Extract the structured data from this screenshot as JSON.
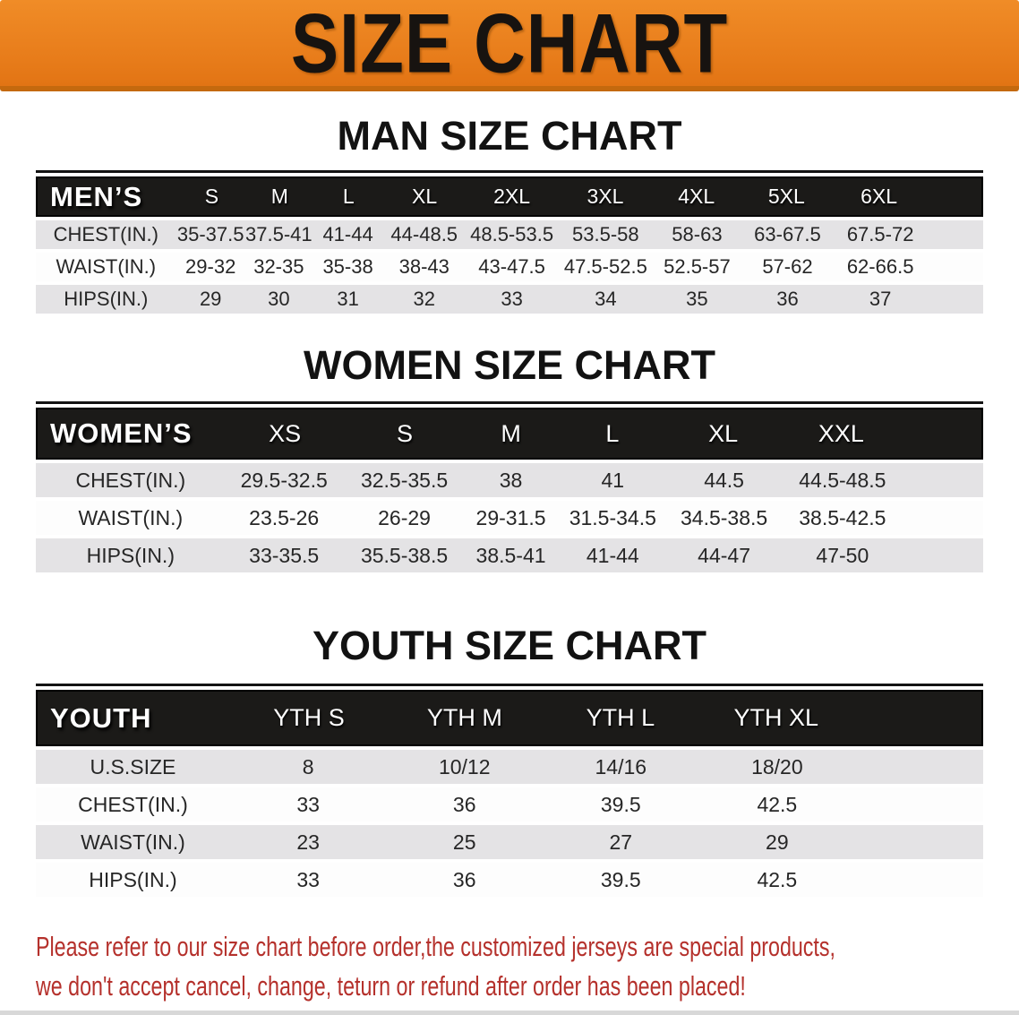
{
  "banner": {
    "title": "SIZE CHART",
    "bg_color": "#e87d1b",
    "edge_color": "#c4690e",
    "text_color": "#171310"
  },
  "sections": [
    {
      "heading": "MAN SIZE CHART",
      "table": {
        "header_label": "MEN’S",
        "columns": [
          "S",
          "M",
          "L",
          "XL",
          "2XL",
          "3XL",
          "4XL",
          "5XL",
          "6XL"
        ],
        "rows": [
          {
            "label": "CHEST(IN.)",
            "values": [
              "35-37.5",
              "37.5-41",
              "41-44",
              "44-48.5",
              "48.5-53.5",
              "53.5-58",
              "58-63",
              "63-67.5",
              "67.5-72"
            ]
          },
          {
            "label": "WAIST(IN.)",
            "values": [
              "29-32",
              "32-35",
              "35-38",
              "38-43",
              "43-47.5",
              "47.5-52.5",
              "52.5-57",
              "57-62",
              "62-66.5"
            ]
          },
          {
            "label": "HIPS(IN.)",
            "values": [
              "29",
              "30",
              "31",
              "32",
              "33",
              "34",
              "35",
              "36",
              "37"
            ]
          }
        ]
      }
    },
    {
      "heading": "WOMEN SIZE CHART",
      "table": {
        "header_label": "WOMEN’S",
        "columns": [
          "XS",
          "S",
          "M",
          "L",
          "XL",
          "XXL"
        ],
        "rows": [
          {
            "label": "CHEST(IN.)",
            "values": [
              "29.5-32.5",
              "32.5-35.5",
              "38",
              "41",
              "44.5",
              "44.5-48.5"
            ]
          },
          {
            "label": "WAIST(IN.)",
            "values": [
              "23.5-26",
              "26-29",
              "29-31.5",
              "31.5-34.5",
              "34.5-38.5",
              "38.5-42.5"
            ]
          },
          {
            "label": "HIPS(IN.)",
            "values": [
              "33-35.5",
              "35.5-38.5",
              "38.5-41",
              "41-44",
              "44-47",
              "47-50"
            ]
          }
        ]
      }
    },
    {
      "heading": "YOUTH SIZE CHART",
      "table": {
        "header_label": "YOUTH",
        "columns": [
          "YTH S",
          "YTH M",
          "YTH L",
          "YTH XL"
        ],
        "rows": [
          {
            "label": "U.S.SIZE",
            "values": [
              "8",
              "10/12",
              "14/16",
              "18/20"
            ]
          },
          {
            "label": "CHEST(IN.)",
            "values": [
              "33",
              "36",
              "39.5",
              "42.5"
            ]
          },
          {
            "label": "WAIST(IN.)",
            "values": [
              "23",
              "25",
              "27",
              "29"
            ]
          },
          {
            "label": "HIPS(IN.)",
            "values": [
              "33",
              "36",
              "39.5",
              "42.5"
            ]
          }
        ]
      }
    }
  ],
  "footer": {
    "line1": "Please refer to our size chart before order,the customized jerseys are special products,",
    "line2": "we don't accept cancel, change, teturn or refund after order has been placed!",
    "text_color": "#b5312c"
  },
  "table_colors": {
    "header_bg": "#1b1a18",
    "header_text": "#ffffff",
    "row_gray": "#e4e3e5",
    "row_white": "#fdfdfd"
  }
}
